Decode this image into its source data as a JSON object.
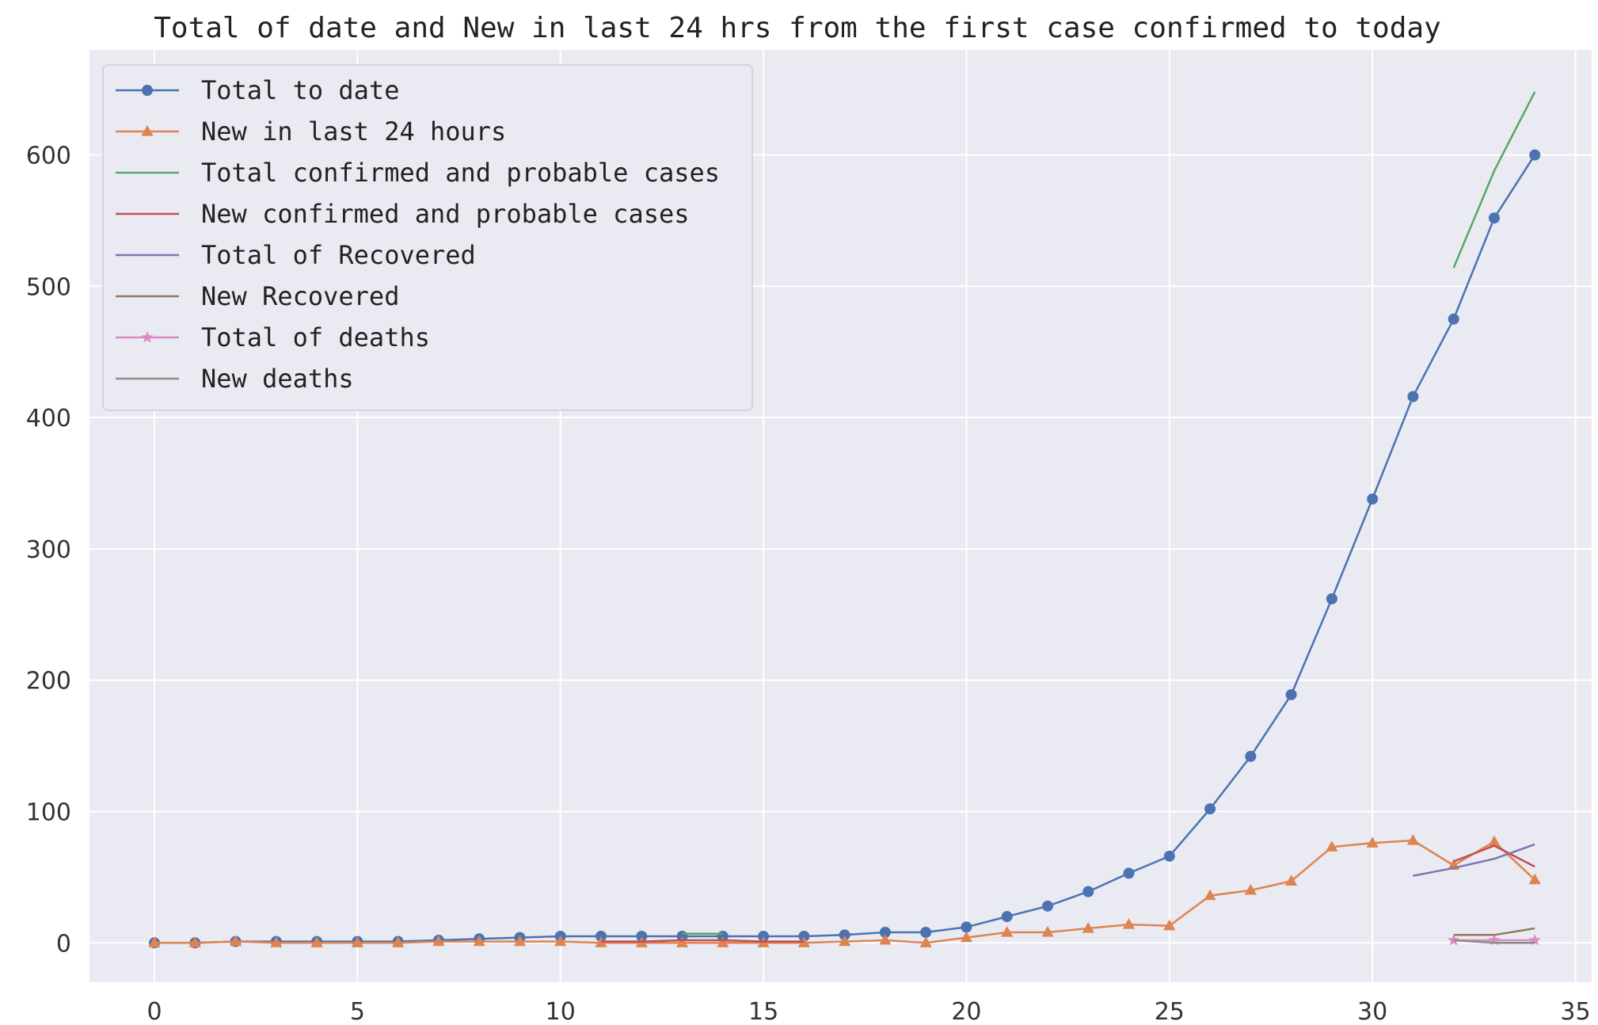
{
  "chart_data": {
    "type": "line",
    "title": "Total of date and New in last 24 hrs from the first case confirmed to today",
    "xlabel": "",
    "ylabel": "",
    "xlim": [
      -1.6,
      35.4
    ],
    "ylim": [
      -30,
      680
    ],
    "xticks": [
      0,
      5,
      10,
      15,
      20,
      25,
      30,
      35
    ],
    "yticks": [
      0,
      100,
      200,
      300,
      400,
      500,
      600
    ],
    "grid": true,
    "legend_position": "top-left",
    "series": [
      {
        "name": "Total to date",
        "color": "#4c72b0",
        "marker": "circle",
        "x": [
          0,
          1,
          2,
          3,
          4,
          5,
          6,
          7,
          8,
          9,
          10,
          11,
          12,
          13,
          14,
          15,
          16,
          17,
          18,
          19,
          20,
          21,
          22,
          23,
          24,
          25,
          26,
          27,
          28,
          29,
          30,
          31,
          32,
          33,
          34
        ],
        "y": [
          0,
          0,
          1,
          1,
          1,
          1,
          1,
          2,
          3,
          4,
          5,
          5,
          5,
          5,
          5,
          5,
          5,
          6,
          8,
          8,
          12,
          20,
          28,
          39,
          53,
          66,
          102,
          142,
          189,
          262,
          338,
          416,
          475,
          552,
          600
        ]
      },
      {
        "name": "New in last 24 hours",
        "color": "#dd8452",
        "marker": "triangle",
        "x": [
          0,
          1,
          2,
          3,
          4,
          5,
          6,
          7,
          8,
          9,
          10,
          11,
          12,
          13,
          14,
          15,
          16,
          17,
          18,
          19,
          20,
          21,
          22,
          23,
          24,
          25,
          26,
          27,
          28,
          29,
          30,
          31,
          32,
          33,
          34
        ],
        "y": [
          0,
          0,
          1,
          0,
          0,
          0,
          0,
          1,
          1,
          1,
          1,
          0,
          0,
          0,
          0,
          0,
          0,
          1,
          2,
          0,
          4,
          8,
          8,
          11,
          14,
          13,
          36,
          40,
          47,
          73,
          76,
          78,
          59,
          77,
          48
        ]
      },
      {
        "name": "Total confirmed and probable cases",
        "color": "#55a868",
        "marker": "none",
        "x": [
          13,
          14,
          32,
          33,
          34
        ],
        "y": [
          7,
          7,
          514,
          588,
          648
        ]
      },
      {
        "name": "New confirmed and probable cases",
        "color": "#c44e52",
        "marker": "none",
        "x": [
          11,
          12,
          13,
          14,
          15,
          16,
          32,
          33,
          34
        ],
        "y": [
          1,
          1,
          2,
          2,
          1,
          1,
          62,
          74,
          58
        ]
      },
      {
        "name": "Total of Recovered",
        "color": "#8172b3",
        "marker": "none",
        "x": [
          31,
          32,
          33,
          34
        ],
        "y": [
          51,
          57,
          64,
          75
        ]
      },
      {
        "name": "New Recovered",
        "color": "#937860",
        "marker": "none",
        "x": [
          32,
          33,
          34
        ],
        "y": [
          6,
          6,
          11
        ]
      },
      {
        "name": "Total of deaths",
        "color": "#da8bc3",
        "marker": "star",
        "x": [
          32,
          33,
          34
        ],
        "y": [
          2,
          2,
          2
        ]
      },
      {
        "name": "New deaths",
        "color": "#8c8c8c",
        "marker": "none",
        "x": [
          32,
          33,
          34
        ],
        "y": [
          2,
          0,
          0
        ]
      }
    ]
  }
}
